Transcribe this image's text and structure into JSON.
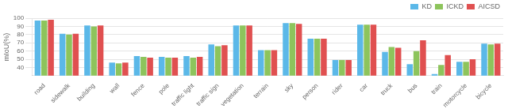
{
  "chart_data": {
    "type": "bar",
    "categories": [
      "road",
      "sidewalk",
      "building",
      "wall",
      "fence",
      "pole",
      "traffic light",
      "traffic sign",
      "vegetation",
      "terrain",
      "sky",
      "person",
      "rider",
      "car",
      "truck",
      "bus",
      "train",
      "motorcycle",
      "bicycle"
    ],
    "series": [
      {
        "name": "KD",
        "color": "#5BB8E8",
        "values": [
          97,
          81,
          91,
          46,
          54,
          53,
          54,
          68,
          91,
          61,
          94,
          75,
          49,
          92,
          59,
          44,
          32,
          47,
          69
        ]
      },
      {
        "name": "ICKD",
        "color": "#8DC45C",
        "values": [
          97,
          80,
          90,
          45,
          53,
          52,
          52,
          66,
          91,
          61,
          94,
          75,
          49,
          92,
          65,
          60,
          43,
          47,
          68
        ]
      },
      {
        "name": "AICSD",
        "color": "#E05050",
        "values": [
          98,
          81,
          91,
          46,
          52,
          52,
          53,
          67,
          91,
          61,
          93,
          75,
          49,
          92,
          64,
          73,
          55,
          50,
          69
        ]
      }
    ],
    "ylabel": "mIoU(%)",
    "ylim": [
      30,
      100
    ],
    "yticks": [
      40,
      50,
      60,
      70,
      80,
      90,
      100
    ],
    "grid": true,
    "legend": "upper right"
  }
}
